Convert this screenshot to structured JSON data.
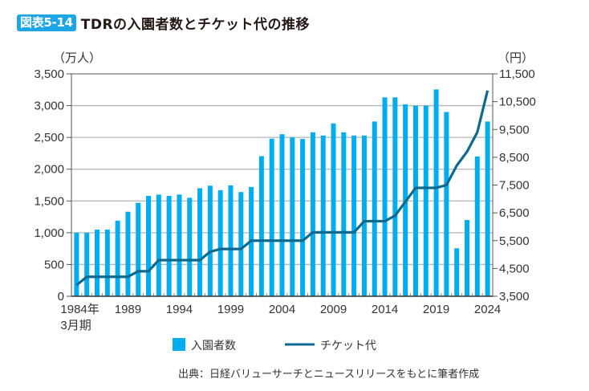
{
  "header": {
    "badge": "図表5-14",
    "title": "TDRの入園者数とチケット代の推移"
  },
  "source_note": "出典：日経バリューサーチとニュースリリースをもとに筆者作成",
  "colors": {
    "badge": "#1ea5e6",
    "bars": "#00aeef",
    "line": "#0d6a8e",
    "grid": "#b5b5b5",
    "axis": "#555555"
  },
  "chart_data": {
    "type": "bar+line",
    "title": "TDRの入園者数とチケット代の推移",
    "xlabel": "",
    "x_first_label_suffix": "年",
    "x_sub_label": "3月期",
    "x_tick_labels": [
      "1984年",
      "1989",
      "1994",
      "1999",
      "2004",
      "2009",
      "2014",
      "2019",
      "2024"
    ],
    "x": [
      1984,
      1985,
      1986,
      1987,
      1988,
      1989,
      1990,
      1991,
      1992,
      1993,
      1994,
      1995,
      1996,
      1997,
      1998,
      1999,
      2000,
      2001,
      2002,
      2003,
      2004,
      2005,
      2006,
      2007,
      2008,
      2009,
      2010,
      2011,
      2012,
      2013,
      2014,
      2015,
      2016,
      2017,
      2018,
      2019,
      2020,
      2021,
      2022,
      2023,
      2024
    ],
    "left_axis": {
      "unit_label": "（万人）",
      "ylim": [
        0,
        3500
      ],
      "ticks": [
        0,
        500,
        1000,
        1500,
        2000,
        2500,
        3000,
        3500
      ],
      "tick_labels": [
        "0",
        "500",
        "1,000",
        "1,500",
        "2,000",
        "2,500",
        "3,000",
        "3,500"
      ]
    },
    "right_axis": {
      "unit_label": "（円）",
      "ylim": [
        3500,
        11500
      ],
      "ticks": [
        3500,
        4500,
        5500,
        6500,
        7500,
        8500,
        9500,
        10500,
        11500
      ],
      "tick_labels": [
        "3,500",
        "4,500",
        "5,500",
        "6,500",
        "7,500",
        "8,500",
        "9,500",
        "10,500",
        "11,500"
      ]
    },
    "grid": true,
    "legend_position": "bottom-center",
    "series": [
      {
        "name": "入園者数",
        "type": "bar",
        "axis": "left",
        "values": [
          1000,
          1000,
          1050,
          1050,
          1190,
          1330,
          1470,
          1580,
          1600,
          1580,
          1600,
          1550,
          1700,
          1740,
          1670,
          1745,
          1640,
          1720,
          2205,
          2480,
          2550,
          2500,
          2475,
          2580,
          2530,
          2720,
          2580,
          2530,
          2530,
          2750,
          3130,
          3130,
          3020,
          3000,
          3000,
          3255,
          2900,
          755,
          1200,
          2200,
          2750
        ]
      },
      {
        "name": "チケット代",
        "type": "line",
        "axis": "right",
        "values": [
          3900,
          4200,
          4200,
          4200,
          4200,
          4200,
          4400,
          4400,
          4800,
          4800,
          4800,
          4800,
          4800,
          5100,
          5200,
          5200,
          5200,
          5500,
          5500,
          5500,
          5500,
          5500,
          5500,
          5800,
          5800,
          5800,
          5800,
          5800,
          6200,
          6200,
          6200,
          6400,
          6900,
          7400,
          7400,
          7400,
          7500,
          8200,
          8700,
          9400,
          10900
        ]
      }
    ]
  }
}
